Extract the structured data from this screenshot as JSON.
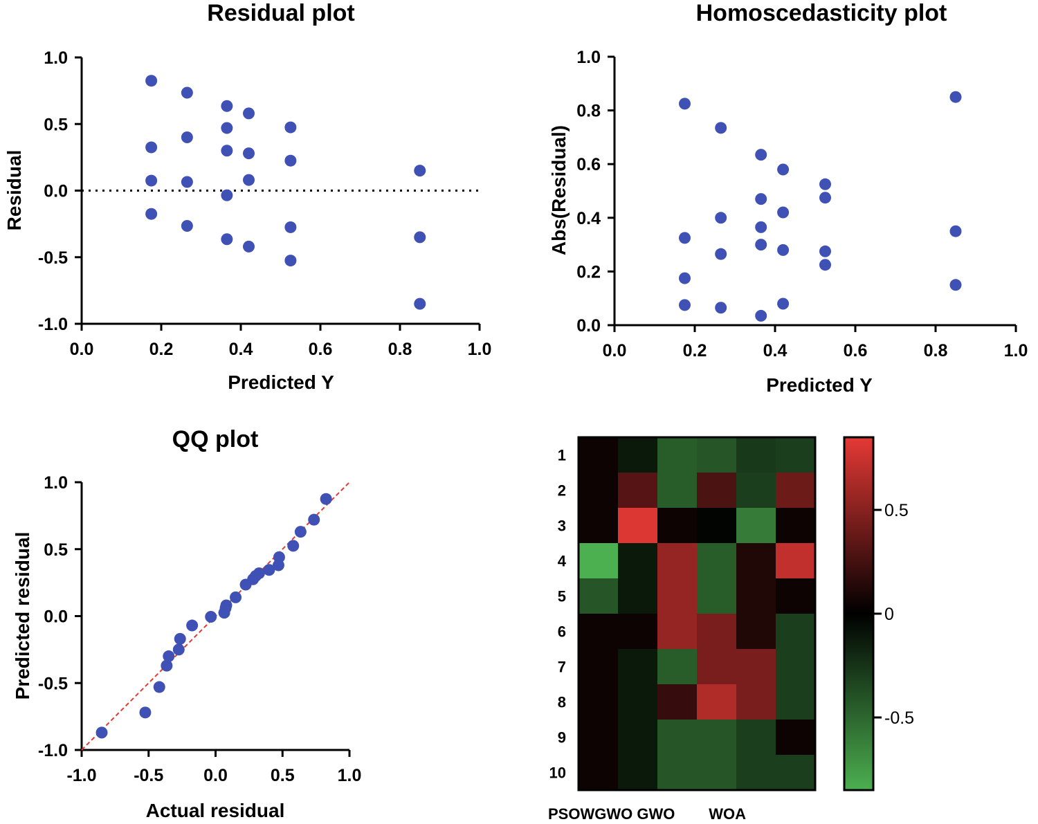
{
  "colors": {
    "marker": "#3f51b5",
    "refline": "#e53935",
    "axis": "#000000",
    "hot": "#e53935",
    "neutral": "#000000",
    "cold": "#4caf50"
  },
  "chart_data": [
    {
      "type": "scatter",
      "title": "Residual plot",
      "xlabel": "Predicted Y",
      "ylabel": "Residual",
      "xlim": [
        0.0,
        1.0
      ],
      "ylim": [
        -1.0,
        1.0
      ],
      "xticks": [
        "0.0",
        "0.2",
        "0.4",
        "0.6",
        "0.8",
        "1.0"
      ],
      "yticks": [
        "-1.0",
        "-0.5",
        "0.0",
        "0.5",
        "1.0"
      ],
      "reference_line": {
        "y": 0,
        "style": "dotted"
      },
      "points": [
        [
          0.175,
          0.825
        ],
        [
          0.175,
          0.325
        ],
        [
          0.175,
          0.075
        ],
        [
          0.175,
          -0.175
        ],
        [
          0.265,
          0.735
        ],
        [
          0.265,
          0.4
        ],
        [
          0.265,
          0.065
        ],
        [
          0.265,
          -0.265
        ],
        [
          0.365,
          0.635
        ],
        [
          0.365,
          0.47
        ],
        [
          0.365,
          0.3
        ],
        [
          0.365,
          -0.035
        ],
        [
          0.365,
          -0.365
        ],
        [
          0.42,
          0.58
        ],
        [
          0.42,
          0.28
        ],
        [
          0.42,
          0.08
        ],
        [
          0.42,
          -0.42
        ],
        [
          0.525,
          0.475
        ],
        [
          0.525,
          0.225
        ],
        [
          0.525,
          -0.275
        ],
        [
          0.525,
          -0.525
        ],
        [
          0.85,
          0.15
        ],
        [
          0.85,
          -0.35
        ],
        [
          0.85,
          -0.85
        ]
      ]
    },
    {
      "type": "scatter",
      "title": "Homoscedasticity plot",
      "xlabel": "Predicted Y",
      "ylabel": "Abs(Residual)",
      "xlim": [
        0.0,
        1.0
      ],
      "ylim": [
        0.0,
        1.0
      ],
      "xticks": [
        "0.0",
        "0.2",
        "0.4",
        "0.6",
        "0.8",
        "1.0"
      ],
      "yticks": [
        "0.0",
        "0.2",
        "0.4",
        "0.6",
        "0.8",
        "1.0"
      ],
      "points": [
        [
          0.175,
          0.825
        ],
        [
          0.175,
          0.325
        ],
        [
          0.175,
          0.175
        ],
        [
          0.175,
          0.075
        ],
        [
          0.265,
          0.735
        ],
        [
          0.265,
          0.4
        ],
        [
          0.265,
          0.265
        ],
        [
          0.265,
          0.065
        ],
        [
          0.365,
          0.635
        ],
        [
          0.365,
          0.47
        ],
        [
          0.365,
          0.365
        ],
        [
          0.365,
          0.3
        ],
        [
          0.365,
          0.035
        ],
        [
          0.42,
          0.58
        ],
        [
          0.42,
          0.42
        ],
        [
          0.42,
          0.28
        ],
        [
          0.42,
          0.08
        ],
        [
          0.525,
          0.525
        ],
        [
          0.525,
          0.475
        ],
        [
          0.525,
          0.275
        ],
        [
          0.525,
          0.225
        ],
        [
          0.85,
          0.85
        ],
        [
          0.85,
          0.35
        ],
        [
          0.85,
          0.15
        ]
      ]
    },
    {
      "type": "scatter",
      "title": "QQ plot",
      "xlabel": "Actual residual",
      "ylabel": "Predicted residual",
      "xlim": [
        -1.0,
        1.0
      ],
      "ylim": [
        -1.0,
        1.0
      ],
      "xticks": [
        "-1.0",
        "-0.5",
        "0.0",
        "0.5",
        "1.0"
      ],
      "yticks": [
        "-1.0",
        "-0.5",
        "0.0",
        "0.5",
        "1.0"
      ],
      "reference_line": {
        "from": [
          -1.0,
          -1.0
        ],
        "to": [
          1.0,
          1.0
        ],
        "style": "dashed"
      },
      "points": [
        [
          -0.85,
          -0.87
        ],
        [
          -0.525,
          -0.72
        ],
        [
          -0.42,
          -0.53
        ],
        [
          -0.365,
          -0.37
        ],
        [
          -0.35,
          -0.3
        ],
        [
          -0.275,
          -0.25
        ],
        [
          -0.265,
          -0.17
        ],
        [
          -0.175,
          -0.07
        ],
        [
          -0.035,
          -0.005
        ],
        [
          0.065,
          0.025
        ],
        [
          0.075,
          0.06
        ],
        [
          0.08,
          0.08
        ],
        [
          0.15,
          0.14
        ],
        [
          0.225,
          0.235
        ],
        [
          0.28,
          0.275
        ],
        [
          0.3,
          0.3
        ],
        [
          0.325,
          0.32
        ],
        [
          0.4,
          0.345
        ],
        [
          0.47,
          0.38
        ],
        [
          0.475,
          0.44
        ],
        [
          0.58,
          0.525
        ],
        [
          0.635,
          0.63
        ],
        [
          0.735,
          0.72
        ],
        [
          0.825,
          0.875
        ]
      ]
    },
    {
      "type": "heatmap",
      "rows": [
        "1",
        "2",
        "3",
        "4",
        "5",
        "6",
        "7",
        "8",
        "9",
        "10"
      ],
      "column_labels": "PSOWGWO GWO        WOA",
      "columns": 6,
      "values": [
        [
          0.05,
          -0.12,
          -0.45,
          -0.42,
          -0.28,
          -0.3
        ],
        [
          0.05,
          0.32,
          -0.45,
          0.28,
          -0.3,
          0.4
        ],
        [
          0.05,
          0.82,
          0.05,
          -0.02,
          -0.6,
          0.05
        ],
        [
          -0.85,
          -0.12,
          0.55,
          -0.45,
          0.12,
          0.72
        ],
        [
          -0.42,
          -0.12,
          0.55,
          -0.45,
          0.12,
          0.05
        ],
        [
          0.05,
          0.05,
          0.55,
          0.45,
          0.12,
          -0.3
        ],
        [
          0.05,
          -0.12,
          -0.45,
          0.45,
          0.45,
          -0.3
        ],
        [
          0.05,
          -0.12,
          0.2,
          0.65,
          0.45,
          -0.3
        ],
        [
          0.05,
          -0.12,
          -0.42,
          -0.42,
          -0.3,
          0.05
        ],
        [
          0.05,
          -0.12,
          -0.42,
          -0.42,
          -0.3,
          -0.3
        ]
      ],
      "colorbar": {
        "min": -0.85,
        "max": 0.85,
        "ticks": [
          0.5,
          0,
          -0.5
        ],
        "tick_labels": [
          "0.5",
          "0",
          "-0.5"
        ]
      }
    }
  ]
}
